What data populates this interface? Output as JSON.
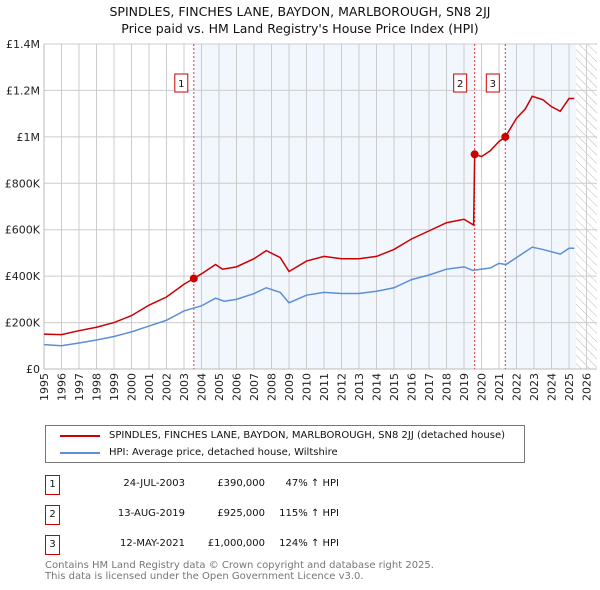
{
  "chart_data": {
    "type": "line",
    "title": "SPINDLES, FINCHES LANE, BAYDON, MARLBOROUGH, SN8 2JJ",
    "subtitle": "Price paid vs. HM Land Registry's House Price Index (HPI)",
    "xlim": [
      1995,
      2026.6
    ],
    "ylim": [
      0,
      1400000
    ],
    "x_ticks": [
      "1995",
      "1996",
      "1997",
      "1998",
      "1999",
      "2000",
      "2001",
      "2002",
      "2003",
      "2004",
      "2005",
      "2006",
      "2007",
      "2008",
      "2009",
      "2010",
      "2011",
      "2012",
      "2013",
      "2014",
      "2015",
      "2016",
      "2017",
      "2018",
      "2019",
      "2020",
      "2021",
      "2022",
      "2023",
      "2024",
      "2025",
      "2026"
    ],
    "y_ticks": [
      {
        "v": 0,
        "label": "£0"
      },
      {
        "v": 200000,
        "label": "£200K"
      },
      {
        "v": 400000,
        "label": "£400K"
      },
      {
        "v": 600000,
        "label": "£600K"
      },
      {
        "v": 800000,
        "label": "£800K"
      },
      {
        "v": 1000000,
        "label": "£1M"
      },
      {
        "v": 1200000,
        "label": "£1.2M"
      },
      {
        "v": 1400000,
        "label": "£1.4M"
      }
    ],
    "grid": true,
    "shaded_ranges": [
      [
        2003.56,
        2019.61
      ],
      [
        2021.36,
        2025.4
      ]
    ],
    "forecast_hatch_from": 2025.4,
    "series": [
      {
        "name": "SPINDLES, FINCHES LANE, BAYDON, MARLBOROUGH, SN8 2JJ (detached house)",
        "color": "#cc0000",
        "x": [
          1995,
          1996,
          1997,
          1998,
          1999,
          2000,
          2001,
          2002,
          2003,
          2003.56,
          2004,
          2004.8,
          2005.2,
          2006,
          2007,
          2007.7,
          2008.5,
          2009,
          2010,
          2011,
          2012,
          2013,
          2014,
          2015,
          2016,
          2017,
          2018,
          2019,
          2019.55,
          2019.61,
          2020,
          2020.5,
          2021,
          2021.36,
          2022,
          2022.5,
          2022.9,
          2023.5,
          2024,
          2024.5,
          2025,
          2025.3
        ],
        "y": [
          150000,
          148000,
          165000,
          180000,
          200000,
          230000,
          275000,
          310000,
          365000,
          390000,
          410000,
          450000,
          430000,
          440000,
          475000,
          510000,
          480000,
          420000,
          465000,
          485000,
          475000,
          475000,
          485000,
          515000,
          560000,
          595000,
          630000,
          645000,
          620000,
          925000,
          915000,
          940000,
          980000,
          1000000,
          1080000,
          1120000,
          1175000,
          1160000,
          1130000,
          1110000,
          1165000,
          1165000
        ]
      },
      {
        "name": "HPI: Average price, detached house, Wiltshire",
        "color": "#5b8fd6",
        "x": [
          1995,
          1996,
          1997,
          1998,
          1999,
          2000,
          2001,
          2002,
          2003,
          2004,
          2004.8,
          2005.3,
          2006,
          2007,
          2007.7,
          2008.5,
          2009,
          2010,
          2011,
          2012,
          2013,
          2014,
          2015,
          2016,
          2017,
          2018,
          2019,
          2019.5,
          2020,
          2020.5,
          2021,
          2021.4,
          2022,
          2022.9,
          2023.5,
          2024.5,
          2025,
          2025.3
        ],
        "y": [
          105000,
          100000,
          112000,
          125000,
          140000,
          160000,
          185000,
          210000,
          250000,
          272000,
          305000,
          292000,
          300000,
          325000,
          350000,
          330000,
          285000,
          318000,
          330000,
          325000,
          325000,
          335000,
          350000,
          385000,
          405000,
          430000,
          440000,
          425000,
          430000,
          435000,
          455000,
          450000,
          480000,
          525000,
          515000,
          495000,
          520000,
          520000
        ]
      }
    ],
    "sales": [
      {
        "id": "1",
        "x": 2003.56,
        "y": 390000,
        "date": "24-JUL-2003",
        "price": "£390,000",
        "hpi": "47% ↑ HPI"
      },
      {
        "id": "2",
        "x": 2019.61,
        "y": 925000,
        "date": "13-AUG-2019",
        "price": "£925,000",
        "hpi": "115% ↑ HPI"
      },
      {
        "id": "3",
        "x": 2021.36,
        "y": 1000000,
        "date": "12-MAY-2021",
        "price": "£1,000,000",
        "hpi": "124% ↑ HPI"
      }
    ],
    "footer": [
      "Contains HM Land Registry data © Crown copyright and database right 2025.",
      "This data is licensed under the Open Government Licence v3.0."
    ]
  }
}
